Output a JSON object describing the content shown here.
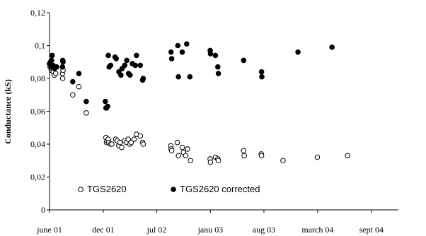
{
  "chart_data": {
    "type": "scatter",
    "ylabel": "Conductance (kS)",
    "xlabel": "",
    "ylim": [
      0,
      0.12
    ],
    "yticks": [
      "0",
      "0,02",
      "0,04",
      "0,06",
      "0,08",
      "0,1",
      "0,12"
    ],
    "xlim": [
      "2001-06-01",
      "2004-09-01"
    ],
    "xticks": [
      {
        "label": "june 01",
        "date": "2001-06-01"
      },
      {
        "label": "dec 01",
        "date": "2001-12-01"
      },
      {
        "label": "jul 02",
        "date": "2002-06-01"
      },
      {
        "label": "janu 03",
        "date": "2002-12-01"
      },
      {
        "label": "aug 03",
        "date": "2003-06-01"
      },
      {
        "label": "march 04",
        "date": "2003-12-01"
      },
      {
        "label": "sept 04",
        "date": "2004-06-01"
      }
    ],
    "grid": false,
    "legend": "bottom-left",
    "series": [
      {
        "name": "TGS2620",
        "marker": "open-circle",
        "color": "#000000",
        "points": [
          [
            "2001-06-01",
            0.089
          ],
          [
            "2001-06-03",
            0.087
          ],
          [
            "2001-06-05",
            0.088
          ],
          [
            "2001-06-07",
            0.085
          ],
          [
            "2001-06-09",
            0.086
          ],
          [
            "2001-06-14",
            0.084
          ],
          [
            "2001-06-17",
            0.082
          ],
          [
            "2001-06-22",
            0.083
          ],
          [
            "2001-07-15",
            0.083
          ],
          [
            "2001-07-16",
            0.08
          ],
          [
            "2001-07-17",
            0.085
          ],
          [
            "2001-08-19",
            0.07
          ],
          [
            "2001-09-09",
            0.075
          ],
          [
            "2001-10-04",
            0.059
          ],
          [
            "2001-12-10",
            0.044
          ],
          [
            "2001-12-12",
            0.041
          ],
          [
            "2001-12-14",
            0.042
          ],
          [
            "2001-12-18",
            0.043
          ],
          [
            "2001-12-20",
            0.041
          ],
          [
            "2001-12-26",
            0.04
          ],
          [
            "2001-12-30",
            0.04
          ],
          [
            "2002-01-12",
            0.043
          ],
          [
            "2002-01-18",
            0.042
          ],
          [
            "2002-01-23",
            0.039
          ],
          [
            "2002-01-27",
            0.041
          ],
          [
            "2002-02-02",
            0.038
          ],
          [
            "2002-02-12",
            0.042
          ],
          [
            "2002-02-18",
            0.041
          ],
          [
            "2002-02-24",
            0.043
          ],
          [
            "2002-03-02",
            0.04
          ],
          [
            "2002-03-06",
            0.041
          ],
          [
            "2002-03-16",
            0.043
          ],
          [
            "2002-03-24",
            0.046
          ],
          [
            "2002-04-06",
            0.045
          ],
          [
            "2002-04-14",
            0.041
          ],
          [
            "2002-04-16",
            0.04
          ],
          [
            "2002-07-19",
            0.039
          ],
          [
            "2002-07-20",
            0.037
          ],
          [
            "2002-07-22",
            0.036
          ],
          [
            "2002-08-10",
            0.041
          ],
          [
            "2002-08-14",
            0.033
          ],
          [
            "2002-08-27",
            0.038
          ],
          [
            "2002-08-31",
            0.035
          ],
          [
            "2002-09-08",
            0.033
          ],
          [
            "2002-09-14",
            0.037
          ],
          [
            "2002-09-24",
            0.03
          ],
          [
            "2002-11-30",
            0.031
          ],
          [
            "2002-12-01",
            0.029
          ],
          [
            "2002-12-18",
            0.032
          ],
          [
            "2002-12-26",
            0.031
          ],
          [
            "2002-12-28",
            0.03
          ],
          [
            "2003-03-24",
            0.036
          ],
          [
            "2003-03-26",
            0.033
          ],
          [
            "2003-05-23",
            0.034
          ],
          [
            "2003-05-24",
            0.033
          ],
          [
            "2003-08-05",
            0.03
          ],
          [
            "2003-11-30",
            0.032
          ],
          [
            "2004-03-12",
            0.033
          ]
        ]
      },
      {
        "name": "TGS2620 corrected",
        "marker": "filled-circle",
        "color": "#000000",
        "points": [
          [
            "2001-06-01",
            0.089
          ],
          [
            "2001-06-04",
            0.09
          ],
          [
            "2001-06-06",
            0.087
          ],
          [
            "2001-06-08",
            0.091
          ],
          [
            "2001-06-10",
            0.094
          ],
          [
            "2001-06-13",
            0.088
          ],
          [
            "2001-06-18",
            0.086
          ],
          [
            "2001-06-25",
            0.087
          ],
          [
            "2001-07-15",
            0.087
          ],
          [
            "2001-07-16",
            0.091
          ],
          [
            "2001-07-17",
            0.09
          ],
          [
            "2001-08-19",
            0.078
          ],
          [
            "2001-09-09",
            0.083
          ],
          [
            "2001-10-04",
            0.066
          ],
          [
            "2001-12-08",
            0.066
          ],
          [
            "2001-12-10",
            0.062
          ],
          [
            "2001-12-12",
            0.062
          ],
          [
            "2001-12-16",
            0.063
          ],
          [
            "2001-12-18",
            0.094
          ],
          [
            "2001-12-21",
            0.087
          ],
          [
            "2001-12-26",
            0.088
          ],
          [
            "2002-01-10",
            0.093
          ],
          [
            "2002-01-14",
            0.092
          ],
          [
            "2002-01-23",
            0.084
          ],
          [
            "2002-01-30",
            0.082
          ],
          [
            "2002-02-03",
            0.086
          ],
          [
            "2002-02-12",
            0.088
          ],
          [
            "2002-02-19",
            0.091
          ],
          [
            "2002-02-25",
            0.083
          ],
          [
            "2002-03-02",
            0.082
          ],
          [
            "2002-03-10",
            0.089
          ],
          [
            "2002-03-20",
            0.088
          ],
          [
            "2002-03-24",
            0.094
          ],
          [
            "2002-04-06",
            0.088
          ],
          [
            "2002-04-14",
            0.079
          ],
          [
            "2002-04-16",
            0.08
          ],
          [
            "2002-07-20",
            0.096
          ],
          [
            "2002-07-22",
            0.092
          ],
          [
            "2002-08-12",
            0.1
          ],
          [
            "2002-08-14",
            0.081
          ],
          [
            "2002-08-27",
            0.096
          ],
          [
            "2002-09-11",
            0.101
          ],
          [
            "2002-09-22",
            0.081
          ],
          [
            "2002-11-30",
            0.097
          ],
          [
            "2002-12-01",
            0.095
          ],
          [
            "2002-12-18",
            0.094
          ],
          [
            "2002-12-26",
            0.087
          ],
          [
            "2002-12-28",
            0.083
          ],
          [
            "2003-03-24",
            0.091
          ],
          [
            "2003-05-24",
            0.084
          ],
          [
            "2003-05-25",
            0.081
          ],
          [
            "2003-09-25",
            0.096
          ],
          [
            "2004-01-19",
            0.099
          ]
        ]
      }
    ]
  }
}
